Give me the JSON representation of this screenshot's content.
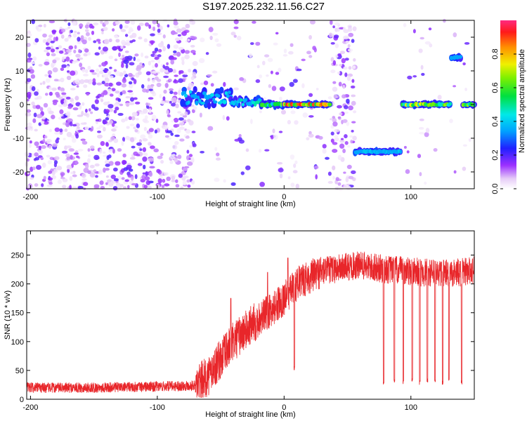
{
  "title": "S197.2025.232.11.56.C27",
  "colors": {
    "line": "#e8262a",
    "point_sparse": "#8a2be2",
    "axis": "#000000"
  },
  "chart_data": [
    {
      "type": "heatmap",
      "name": "spectrogram",
      "xlabel": "Height of straight line (km)",
      "ylabel": "Frequency (Hz)",
      "xlim": [
        -203,
        150
      ],
      "ylim": [
        -25,
        25
      ],
      "xticks": [
        -200,
        -100,
        0,
        100
      ],
      "yticks": [
        -20,
        -10,
        0,
        10,
        20
      ],
      "colorbar": {
        "label": "Normalized spectral amplitude",
        "range": [
          0,
          1
        ],
        "ticks": [
          "0.0",
          "0.2",
          "0.4",
          "0.6",
          "0.8"
        ],
        "tick_values": [
          0.0,
          0.2,
          0.4,
          0.6,
          0.8
        ]
      },
      "noise_regions": [
        {
          "x": [
            -203,
            -70
          ],
          "y": [
            -25,
            25
          ],
          "density": 1.0
        },
        {
          "x": [
            -70,
            35
          ],
          "y": [
            -25,
            25
          ],
          "density": 0.15
        },
        {
          "x": [
            36,
            56
          ],
          "y": [
            -25,
            25
          ],
          "density": 0.9
        },
        {
          "x": [
            92,
            150
          ],
          "y": [
            -25,
            25
          ],
          "density": 0.08
        }
      ],
      "tracks": [
        {
          "x_start": -80,
          "x_end": -42,
          "y": 2,
          "amplitude": 0.45,
          "jitter": 2.5
        },
        {
          "x_start": -42,
          "x_end": -18,
          "y": 0.8,
          "amplitude": 0.5,
          "jitter": 1.2
        },
        {
          "x_start": -18,
          "x_end": 0,
          "y": 0,
          "amplitude": 0.7,
          "jitter": 0.4
        },
        {
          "x_start": 0,
          "x_end": 36,
          "y": 0,
          "amplitude": 0.95,
          "jitter": 0.2
        },
        {
          "x_start": 56,
          "x_end": 92,
          "y": -14,
          "amplitude": 0.4,
          "jitter": 0.3
        },
        {
          "x_start": 93,
          "x_end": 131,
          "y": 0,
          "amplitude": 0.75,
          "jitter": 0.3
        },
        {
          "x_start": 132,
          "x_end": 139,
          "y": 14,
          "amplitude": 0.35,
          "jitter": 0.3
        },
        {
          "x_start": 141,
          "x_end": 150,
          "y": 0,
          "amplitude": 0.85,
          "jitter": 0.2
        }
      ]
    },
    {
      "type": "line",
      "name": "snr",
      "xlabel": "Height of straight line (km)",
      "ylabel": "SNR (10 * v/v)",
      "xlim": [
        -203,
        150
      ],
      "ylim": [
        0,
        292
      ],
      "xticks": [
        -200,
        -100,
        0,
        100
      ],
      "yticks": [
        0,
        50,
        100,
        150,
        200,
        250
      ],
      "baseline_profile": [
        [
          -203,
          20
        ],
        [
          -150,
          20
        ],
        [
          -100,
          22
        ],
        [
          -70,
          24
        ],
        [
          -60,
          40
        ],
        [
          -50,
          70
        ],
        [
          -40,
          100
        ],
        [
          -30,
          120
        ],
        [
          -20,
          140
        ],
        [
          -10,
          155
        ],
        [
          0,
          175
        ],
        [
          10,
          200
        ],
        [
          20,
          212
        ],
        [
          30,
          222
        ],
        [
          45,
          228
        ],
        [
          60,
          232
        ],
        [
          80,
          225
        ],
        [
          100,
          222
        ],
        [
          120,
          218
        ],
        [
          140,
          220
        ],
        [
          150,
          225
        ]
      ],
      "dropouts": [
        {
          "x": 78.5,
          "value": 25
        },
        {
          "x": 87,
          "value": 28
        },
        {
          "x": 94,
          "value": 25
        },
        {
          "x": 101,
          "value": 30
        },
        {
          "x": 107,
          "value": 25
        },
        {
          "x": 113,
          "value": 28
        },
        {
          "x": 119,
          "value": 27
        },
        {
          "x": 125,
          "value": 25
        },
        {
          "x": 130,
          "value": 30
        },
        {
          "x": 140,
          "value": 25
        },
        {
          "x": 8,
          "value": 50
        }
      ],
      "spikes": [
        {
          "x": -42,
          "value": 175
        },
        {
          "x": -13,
          "value": 220
        },
        {
          "x": 3,
          "value": 245
        }
      ]
    }
  ]
}
